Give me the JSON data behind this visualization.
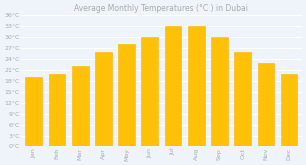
{
  "title": "Average Monthly Temperatures (°C ) in Dubai",
  "months": [
    "Jan",
    "Feb",
    "Mar",
    "Apr",
    "May",
    "Jun",
    "Jul",
    "Aug",
    "Sep",
    "Oct",
    "Nov",
    "Dec"
  ],
  "values": [
    19,
    20,
    22,
    26,
    28,
    30,
    33,
    33,
    30,
    26,
    23,
    20
  ],
  "bar_color": "#FFC107",
  "bar_edge_color": "#FFB300",
  "background_color": "#eef4f9",
  "plot_bg_color": "#eef4f9",
  "grid_color": "#ffffff",
  "ytick_labels": [
    "0°C",
    "3°C",
    "6°C",
    "9°C",
    "12°C",
    "15°C",
    "18°C",
    "21°C",
    "24°C",
    "27°C",
    "30°C",
    "33°C",
    "36°C"
  ],
  "ytick_values": [
    0,
    3,
    6,
    9,
    12,
    15,
    18,
    21,
    24,
    27,
    30,
    33,
    36
  ],
  "ylim": [
    0,
    36
  ],
  "title_fontsize": 5.5,
  "tick_fontsize": 4.5,
  "label_color": "#aaaaaa"
}
